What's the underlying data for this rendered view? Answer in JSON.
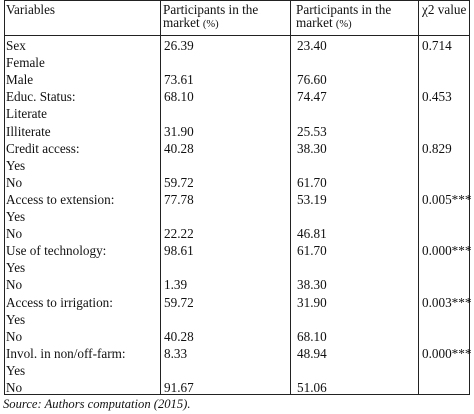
{
  "table": {
    "headers": {
      "variables": "Variables",
      "col1_line1": "Participants in the",
      "col1_line2": "market",
      "col1_unit": "(%)",
      "col2_line1": "Participants in the",
      "col2_line2": "market",
      "col2_unit": "(%)",
      "chi": "χ2 value"
    },
    "rows": [
      {
        "label": "Sex",
        "p1": "26.39",
        "p2": "23.40",
        "chi": "0.714"
      },
      {
        "label": "Female",
        "p1": "",
        "p2": "",
        "chi": ""
      },
      {
        "label": "Male",
        "p1": "73.61",
        "p2": "76.60",
        "chi": ""
      },
      {
        "label": "Educ. Status:",
        "p1": "68.10",
        "p2": "74.47",
        "chi": "0.453"
      },
      {
        "label": "Literate",
        "p1": "",
        "p2": "",
        "chi": ""
      },
      {
        "label": "Illiterate",
        "p1": "31.90",
        "p2": "25.53",
        "chi": ""
      },
      {
        "label": "Credit access:",
        "p1": "40.28",
        "p2": "38.30",
        "chi": "0.829"
      },
      {
        "label": "Yes",
        "p1": "",
        "p2": "",
        "chi": ""
      },
      {
        "label": "No",
        "p1": "59.72",
        "p2": "61.70",
        "chi": ""
      },
      {
        "label": "Access to extension:",
        "p1": "77.78",
        "p2": "53.19",
        "chi": "0.005***"
      },
      {
        "label": "Yes",
        "p1": "",
        "p2": "",
        "chi": ""
      },
      {
        "label": "No",
        "p1": "22.22",
        "p2": "46.81",
        "chi": ""
      },
      {
        "label": "Use of technology:",
        "p1": "98.61",
        "p2": "61.70",
        "chi": "0.000***"
      },
      {
        "label": "Yes",
        "p1": "",
        "p2": "",
        "chi": ""
      },
      {
        "label": "No",
        "p1": "1.39",
        "p2": "38.30",
        "chi": ""
      },
      {
        "label": "Access to irrigation:",
        "p1": "59.72",
        "p2": "31.90",
        "chi": "0.003***"
      },
      {
        "label": "Yes",
        "p1": "",
        "p2": "",
        "chi": ""
      },
      {
        "label": "No",
        "p1": "40.28",
        "p2": "68.10",
        "chi": ""
      },
      {
        "label": "Invol. in non/off-farm:",
        "p1": "8.33",
        "p2": "48.94",
        "chi": "0.000***"
      },
      {
        "label": "Yes",
        "p1": "",
        "p2": "",
        "chi": ""
      },
      {
        "label": "No",
        "p1": "91.67",
        "p2": "51.06",
        "chi": ""
      }
    ]
  },
  "caption": "Source: Authors computation (2015)."
}
